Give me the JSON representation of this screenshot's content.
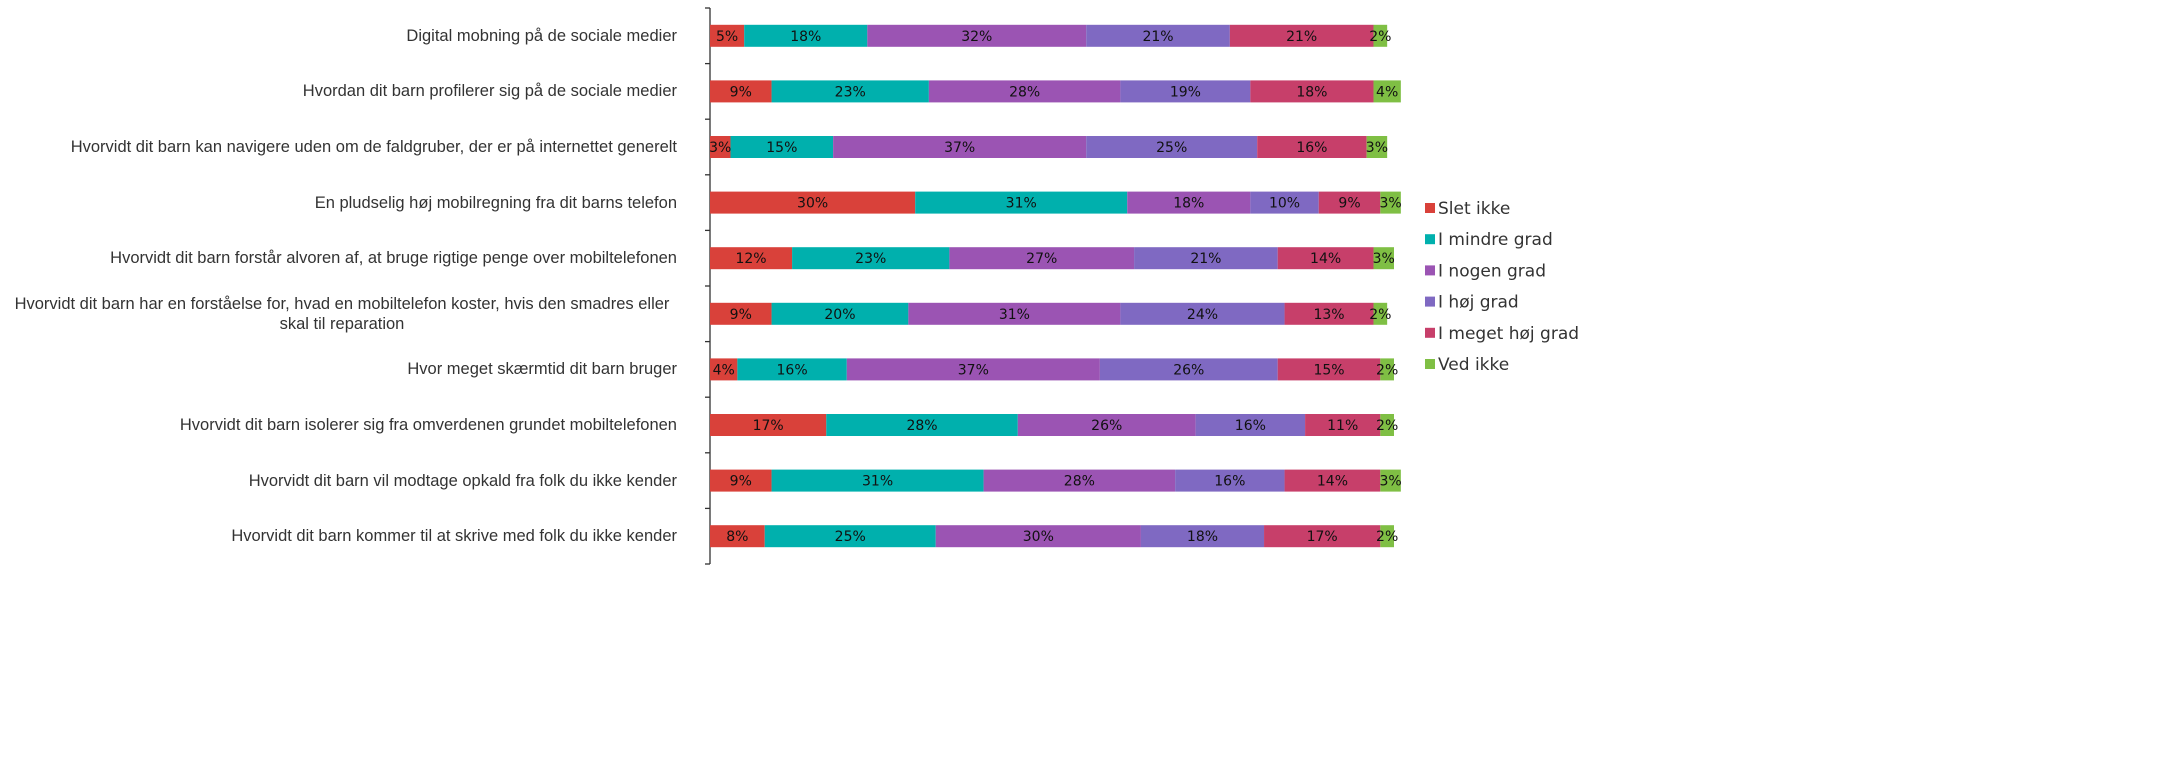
{
  "chart_data": {
    "type": "stacked-bar-horizontal",
    "categories": [
      "Digital mobning på de sociale medier",
      "Hvordan dit barn profilerer sig på de sociale medier",
      "Hvorvidt dit barn kan navigere uden om de faldgruber, der er på internettet generelt",
      "En pludselig høj mobilregning fra dit barns telefon",
      "Hvorvidt dit barn forstår alvoren af, at bruge rigtige penge over mobiltelefonen",
      "Hvorvidt dit barn har en forståelse for, hvad en mobiltelefon koster, hvis den smadres eller skal til reparation",
      "Hvor meget skærmtid dit barn bruger",
      "Hvorvidt dit barn isolerer sig fra omverdenen grundet mobiltelefonen",
      "Hvorvidt dit barn vil modtage opkald fra folk du ikke kender",
      "Hvorvidt dit barn kommer til at skrive med folk du ikke kender"
    ],
    "xlim": [
      0,
      100
    ],
    "series": [
      {
        "name": "Slet ikke",
        "color": "#d9413a",
        "values": [
          5,
          9,
          3,
          30,
          12,
          9,
          4,
          17,
          9,
          8
        ],
        "value_labels": [
          "5%",
          "9%",
          "3%",
          "30%",
          "12%",
          "9%",
          "4%",
          "17%",
          "9%",
          "8%"
        ]
      },
      {
        "name": "I mindre grad",
        "color": "#00b0ad",
        "values": [
          18,
          23,
          15,
          31,
          23,
          20,
          16,
          28,
          31,
          25
        ],
        "value_labels": [
          "18%",
          "23%",
          "15%",
          "31%",
          "23%",
          "20%",
          "16%",
          "28%",
          "31%",
          "25%"
        ]
      },
      {
        "name": "I nogen grad",
        "color": "#9b54b3",
        "values": [
          32,
          28,
          37,
          18,
          27,
          31,
          37,
          26,
          28,
          30
        ],
        "value_labels": [
          "32%",
          "28%",
          "37%",
          "18%",
          "27%",
          "31%",
          "37%",
          "26%",
          "28%",
          "30%"
        ]
      },
      {
        "name": "I høj grad",
        "color": "#7f69c2",
        "values": [
          21,
          19,
          25,
          10,
          21,
          24,
          26,
          16,
          16,
          18
        ],
        "value_labels": [
          "21%",
          "19%",
          "25%",
          "10%",
          "21%",
          "24%",
          "26%",
          "16%",
          "16%",
          "18%"
        ]
      },
      {
        "name": "I meget høj grad",
        "color": "#c73f6a",
        "values": [
          21,
          18,
          16,
          9,
          14,
          13,
          15,
          11,
          14,
          17
        ],
        "value_labels": [
          "21%",
          "18%",
          "16%",
          "9%",
          "14%",
          "13%",
          "15%",
          "11%",
          "14%",
          "17%"
        ]
      },
      {
        "name": "Ved ikke",
        "color": "#7fbf44",
        "values": [
          2,
          4,
          3,
          3,
          3,
          2,
          2,
          2,
          3,
          2
        ],
        "value_labels": [
          "2%",
          "4%",
          "3%",
          "3%",
          "3%",
          "2%",
          "2%",
          "2%",
          "3%",
          "2%"
        ]
      }
    ]
  }
}
